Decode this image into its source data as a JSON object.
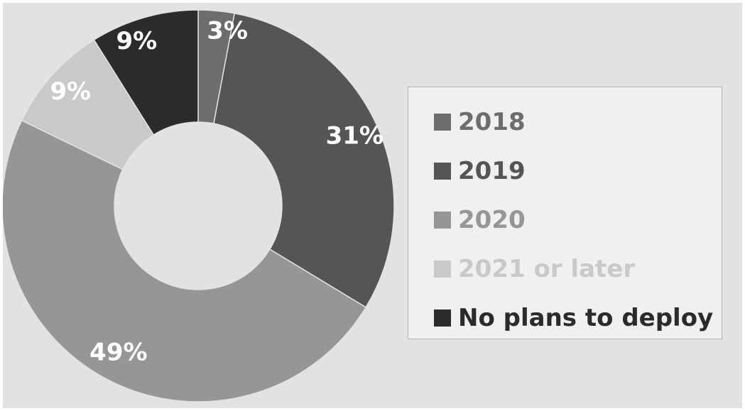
{
  "chart_data": {
    "type": "pie",
    "donut": true,
    "title": "",
    "categories": [
      "2018",
      "2019",
      "2020",
      "2021 or later",
      "No plans to deploy"
    ],
    "values": [
      3,
      31,
      49,
      9,
      9
    ],
    "labels": [
      "3%",
      "31%",
      "49%",
      "9%",
      "9%"
    ],
    "unit": "%",
    "colors": [
      "#6d6d6d",
      "#555555",
      "#969696",
      "#c9c9c9",
      "#2b2b2b"
    ],
    "legend_placement": "right",
    "grid": false
  },
  "legend": {
    "items": [
      {
        "label": "2018",
        "color": "#6d6d6d"
      },
      {
        "label": "2019",
        "color": "#555555"
      },
      {
        "label": "2020",
        "color": "#969696"
      },
      {
        "label": "2021 or later",
        "color": "#c9c9c9"
      },
      {
        "label": "No plans to deploy",
        "color": "#2b2b2b"
      }
    ]
  }
}
